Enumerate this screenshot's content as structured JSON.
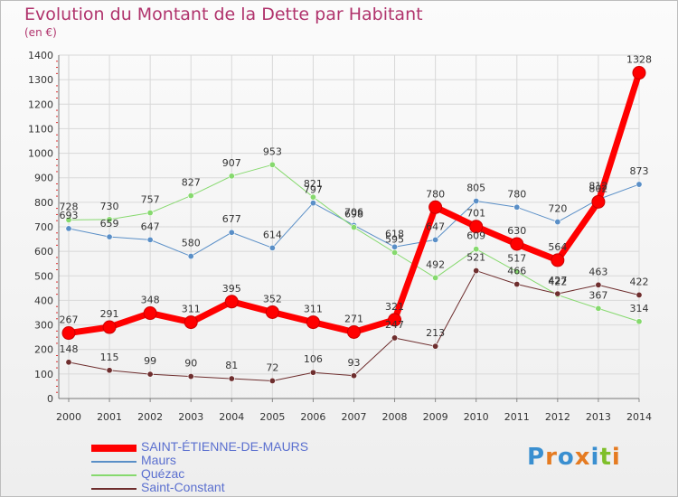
{
  "title": "Evolution du Montant de la Dette par Habitant",
  "unit_label": "(en €)",
  "logo": {
    "text": "Proxiti",
    "colors": [
      "#3a8fd0",
      "#e57b21",
      "#3a8fd0",
      "#e57b21",
      "#3a8fd0",
      "#7fbf2a",
      "#e57b21"
    ]
  },
  "chart_data": {
    "type": "line",
    "title": "Evolution du Montant de la Dette par Habitant",
    "ylabel": "(en €)",
    "ylim": [
      0,
      1400
    ],
    "yticks": [
      0,
      100,
      200,
      300,
      400,
      500,
      600,
      700,
      800,
      900,
      1000,
      1100,
      1200,
      1300,
      1400
    ],
    "x": [
      "2000",
      "2001",
      "2002",
      "2003",
      "2004",
      "2005",
      "2006",
      "2007",
      "2008",
      "2009",
      "2010",
      "2011",
      "2012",
      "2013",
      "2014"
    ],
    "grid": true,
    "legend_position": "bottom-left",
    "series": [
      {
        "name": "SAINT-ÉTIENNE-DE-MAURS",
        "color": "#ff0000",
        "values": [
          267,
          291,
          348,
          311,
          395,
          352,
          311,
          271,
          321,
          780,
          701,
          630,
          564,
          802,
          1328
        ]
      },
      {
        "name": "Maurs",
        "color": "#5a8fc7",
        "values": [
          693,
          659,
          647,
          580,
          677,
          614,
          797,
          706,
          618,
          647,
          805,
          780,
          720,
          812,
          873
        ]
      },
      {
        "name": "Quézac",
        "color": "#86d96e",
        "values": [
          728,
          730,
          757,
          827,
          907,
          953,
          821,
          698,
          595,
          492,
          609,
          517,
          422,
          367,
          314
        ]
      },
      {
        "name": "Saint-Constant",
        "color": "#6e2e2e",
        "values": [
          148,
          115,
          99,
          90,
          81,
          72,
          106,
          93,
          247,
          213,
          521,
          466,
          427,
          463,
          422
        ]
      }
    ]
  }
}
